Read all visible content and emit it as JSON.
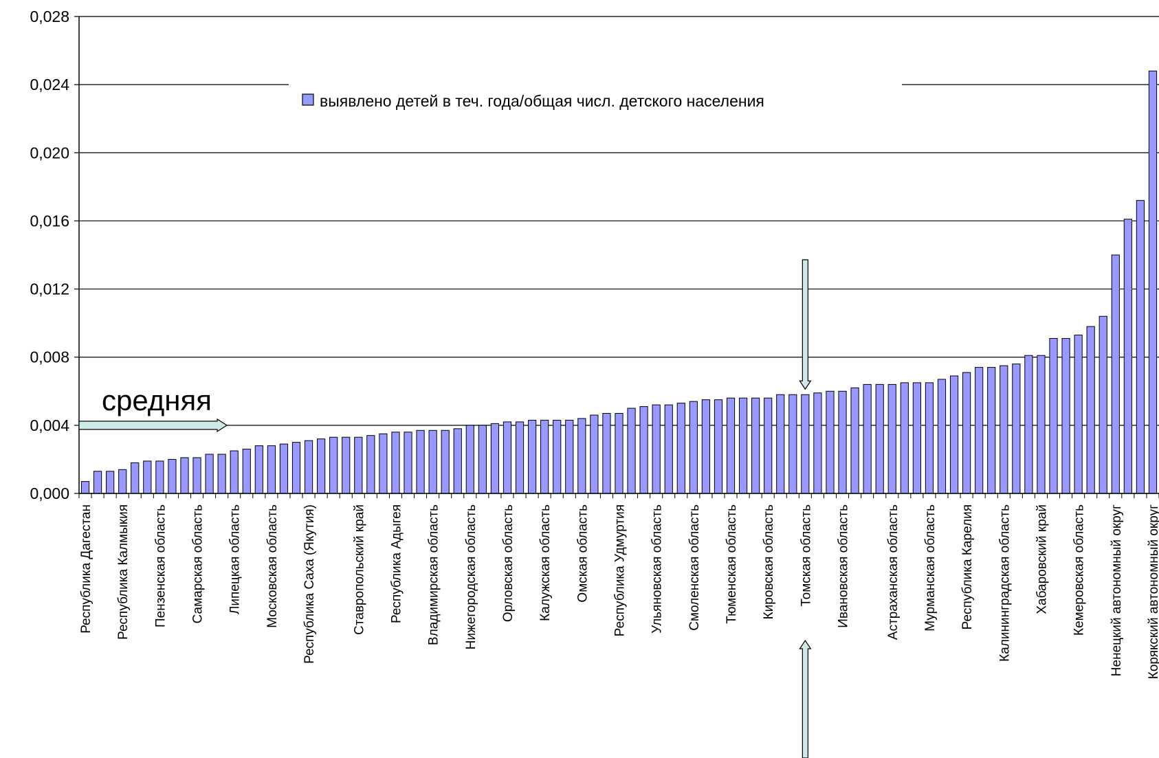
{
  "chart_data": {
    "type": "bar",
    "legend": {
      "label": "выявлено детей в теч. года/общая числ. детского населения",
      "position": "top-center"
    },
    "ylim": [
      0,
      0.028
    ],
    "yticks": [
      "0,028",
      "0,024",
      "0,020",
      "0,016",
      "0,012",
      "0,008",
      "0,004",
      "0,000"
    ],
    "grid": true,
    "colors": {
      "bar": "#9999ff",
      "bar_stroke": "#000000",
      "arrow": "#cfe8e8"
    },
    "category_labels": [
      "Республика Дагестан",
      "Республика Калмыкия",
      "Пензенская область",
      "Самарская область",
      "Липецкая область",
      "Московская область",
      "Республика Саха (Якутия)",
      "Ставропольский край",
      "Республика Адыгея",
      "Владимирская область",
      "Нижегородская область",
      "Орловская область",
      "Калужская область",
      "Омская область",
      "Республика Удмуртия",
      "Ульяновская область",
      "Смоленская область",
      "Тюменская область",
      "Кировская область",
      "Томская область",
      "Ивановская область",
      "Астраханская область",
      "Мурманская область",
      "Республика Карелия",
      "Калининградская область",
      "Хабаровский край",
      "Кемеровская область",
      "Ненецкий автономный округ",
      "Корякский автономный округ"
    ],
    "values": [
      0.0007,
      0.0013,
      0.0013,
      0.0014,
      0.0018,
      0.0019,
      0.0019,
      0.002,
      0.0021,
      0.0021,
      0.0023,
      0.0023,
      0.0025,
      0.0026,
      0.0028,
      0.0028,
      0.0029,
      0.003,
      0.0031,
      0.0032,
      0.0033,
      0.0033,
      0.0033,
      0.0034,
      0.0035,
      0.0036,
      0.0036,
      0.0037,
      0.0037,
      0.0037,
      0.0038,
      0.004,
      0.004,
      0.0041,
      0.0042,
      0.0042,
      0.0043,
      0.0043,
      0.0043,
      0.0043,
      0.0044,
      0.0046,
      0.0047,
      0.0047,
      0.005,
      0.0051,
      0.0052,
      0.0052,
      0.0053,
      0.0054,
      0.0055,
      0.0055,
      0.0056,
      0.0056,
      0.0056,
      0.0056,
      0.0058,
      0.0058,
      0.0058,
      0.0059,
      0.006,
      0.006,
      0.0062,
      0.0064,
      0.0064,
      0.0064,
      0.0065,
      0.0065,
      0.0065,
      0.0067,
      0.0069,
      0.0071,
      0.0074,
      0.0074,
      0.0075,
      0.0076,
      0.0081,
      0.0081,
      0.0091,
      0.0091,
      0.0093,
      0.0098,
      0.0104,
      0.014,
      0.0161,
      0.0172,
      0.0248
    ],
    "annotations": [
      {
        "text": "средняя",
        "value": 0.004
      },
      {
        "text": "",
        "category": "Томская область"
      }
    ]
  }
}
